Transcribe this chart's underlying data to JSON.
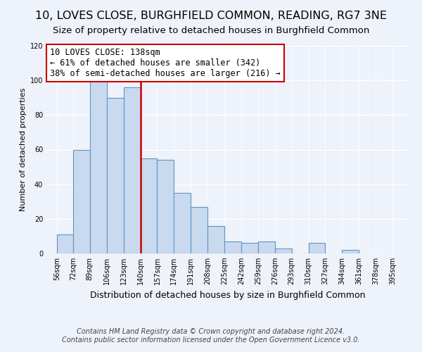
{
  "title": "10, LOVES CLOSE, BURGHFIELD COMMON, READING, RG7 3NE",
  "subtitle": "Size of property relative to detached houses in Burghfield Common",
  "xlabel": "Distribution of detached houses by size in Burghfield Common",
  "ylabel": "Number of detached properties",
  "bar_heights": [
    11,
    60,
    100,
    90,
    96,
    55,
    54,
    35,
    27,
    16,
    7,
    6,
    7,
    3,
    0,
    6,
    2
  ],
  "bin_lefts": [
    56,
    72,
    89,
    106,
    123,
    140,
    157,
    174,
    191,
    208,
    225,
    242,
    259,
    276,
    293,
    310,
    344
  ],
  "bin_rights": [
    72,
    89,
    106,
    123,
    140,
    157,
    174,
    191,
    208,
    225,
    242,
    259,
    276,
    293,
    310,
    327,
    361
  ],
  "xtick_positions": [
    56,
    72,
    89,
    106,
    123,
    140,
    157,
    174,
    191,
    208,
    225,
    242,
    259,
    276,
    293,
    310,
    327,
    344,
    361,
    378,
    395
  ],
  "xtick_labels": [
    "56sqm",
    "72sqm",
    "89sqm",
    "106sqm",
    "123sqm",
    "140sqm",
    "157sqm",
    "174sqm",
    "191sqm",
    "208sqm",
    "225sqm",
    "242sqm",
    "259sqm",
    "276sqm",
    "293sqm",
    "310sqm",
    "327sqm",
    "344sqm",
    "361sqm",
    "378sqm",
    "395sqm"
  ],
  "bar_color": "#c9d9ee",
  "bar_edge_color": "#5b96c8",
  "red_line_x": 140,
  "ylim": [
    0,
    120
  ],
  "yticks": [
    0,
    20,
    40,
    60,
    80,
    100,
    120
  ],
  "xlim_left": 45,
  "xlim_right": 412,
  "annotation_title": "10 LOVES CLOSE: 138sqm",
  "annotation_line1": "← 61% of detached houses are smaller (342)",
  "annotation_line2": "38% of semi-detached houses are larger (216) →",
  "annotation_box_facecolor": "#ffffff",
  "annotation_box_edgecolor": "#cc0000",
  "annotation_fontsize": 8.5,
  "annotation_title_fontsize": 9,
  "footer1": "Contains HM Land Registry data © Crown copyright and database right 2024.",
  "footer2": "Contains public sector information licensed under the Open Government Licence v3.0.",
  "background_color": "#eef2fa",
  "grid_color": "#ffffff",
  "title_fontsize": 11.5,
  "subtitle_fontsize": 9.5,
  "xlabel_fontsize": 9,
  "ylabel_fontsize": 8,
  "tick_fontsize": 7,
  "footer_fontsize": 7
}
